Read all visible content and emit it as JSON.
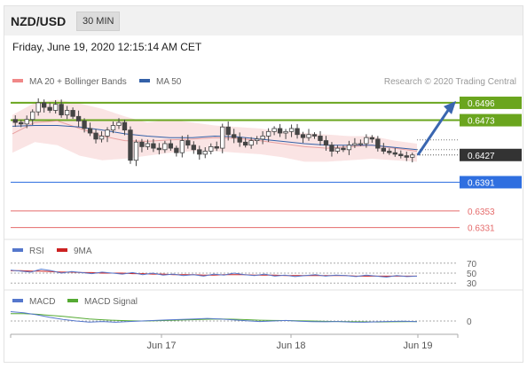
{
  "header": {
    "symbol": "NZD/USD",
    "timeframe": "30 MIN"
  },
  "datetime": "Friday, June 19, 2020 12:15:14 AM CET",
  "colors": {
    "green_level": "#6aa51e",
    "blue_level": "#2f6fe0",
    "red_level": "#e56b6b",
    "bollinger": "#f4c3c3",
    "ma20": "#e8a0a0",
    "ma50": "#3461a8",
    "rsi": "#5577cc",
    "rsi_ma": "#cc2222",
    "macd": "#5577cc",
    "macd_signal": "#55aa33",
    "candle": "#444444",
    "arrow": "#3a66b0",
    "price_box": "#333333"
  },
  "chart_data": [
    {
      "type": "candlestick",
      "legend": [
        {
          "label": "MA 20 + Bollinger Bands",
          "color": "#f08888"
        },
        {
          "label": "MA 50",
          "color": "#3461a8"
        }
      ],
      "copyright": "Research © 2020 Trading Central",
      "ylim": [
        0.632,
        0.651
      ],
      "current_price": 0.6427,
      "levels": [
        {
          "value": 0.6496,
          "label": "0.6496",
          "kind": "resistance"
        },
        {
          "value": 0.6473,
          "label": "0.6473",
          "kind": "resistance"
        },
        {
          "value": 0.6391,
          "label": "0.6391",
          "kind": "support"
        },
        {
          "value": 0.6353,
          "label": "0.6353",
          "kind": "support"
        },
        {
          "value": 0.6331,
          "label": "0.6331",
          "kind": "support"
        }
      ],
      "close_series": [
        0.647,
        0.6468,
        0.6474,
        0.6484,
        0.6496,
        0.649,
        0.6486,
        0.6494,
        0.648,
        0.6486,
        0.6478,
        0.6472,
        0.6462,
        0.6456,
        0.6448,
        0.6452,
        0.646,
        0.6466,
        0.647,
        0.646,
        0.642,
        0.6444,
        0.6438,
        0.6442,
        0.6436,
        0.6434,
        0.6442,
        0.6436,
        0.643,
        0.6446,
        0.644,
        0.6434,
        0.6428,
        0.6432,
        0.6438,
        0.6436,
        0.6464,
        0.6454,
        0.645,
        0.6444,
        0.644,
        0.6446,
        0.6448,
        0.6452,
        0.6458,
        0.6462,
        0.6456,
        0.6458,
        0.6462,
        0.6454,
        0.645,
        0.6454,
        0.6452,
        0.6446,
        0.644,
        0.6432,
        0.6436,
        0.6434,
        0.644,
        0.6442,
        0.6442,
        0.645,
        0.6448,
        0.6436,
        0.6432,
        0.643,
        0.6428,
        0.6426,
        0.6424,
        0.6427
      ],
      "bollinger_upper": [
        0.648,
        0.6496,
        0.65,
        0.6495,
        0.6488,
        0.6478,
        0.647,
        0.6474,
        0.647,
        0.6466,
        0.6464,
        0.6462,
        0.6458,
        0.6456,
        0.6454,
        0.6452,
        0.6452,
        0.6446,
        0.6442
      ],
      "bollinger_lower": [
        0.643,
        0.6444,
        0.644,
        0.6426,
        0.642,
        0.6422,
        0.6426,
        0.643,
        0.6432,
        0.6432,
        0.643,
        0.6428,
        0.6424,
        0.6418,
        0.6418,
        0.642,
        0.6422,
        0.642,
        0.6418
      ],
      "ma20": [
        0.6455,
        0.647,
        0.6472,
        0.6462,
        0.6452,
        0.6446,
        0.6445,
        0.6447,
        0.6448,
        0.645,
        0.6449,
        0.6446,
        0.6442,
        0.6438,
        0.6436,
        0.6438,
        0.644,
        0.6436,
        0.6432
      ],
      "ma50": [
        0.6465,
        0.6466,
        0.6466,
        0.6464,
        0.646,
        0.6455,
        0.6452,
        0.645,
        0.645,
        0.6452,
        0.6451,
        0.6448,
        0.6445,
        0.6442,
        0.644,
        0.644,
        0.644,
        0.6437,
        0.6434
      ],
      "projection": {
        "from": 0.6427,
        "to": 0.6496
      },
      "x_ticks": [
        "Jun 17",
        "Jun 18",
        "Jun 19"
      ]
    },
    {
      "type": "line",
      "legend": [
        {
          "label": "RSI",
          "color": "#5577cc"
        },
        {
          "label": "9MA",
          "color": "#cc2222"
        }
      ],
      "ylim": [
        25,
        75
      ],
      "y_ticks": [
        70,
        50,
        30
      ],
      "rsi": [
        56,
        54,
        52,
        58,
        55,
        50,
        53,
        51,
        49,
        52,
        50,
        48,
        51,
        47,
        50,
        46,
        48,
        45,
        47,
        44,
        48,
        46,
        50,
        47,
        45,
        48,
        44,
        46,
        43,
        45,
        47,
        44,
        46,
        45,
        43,
        46,
        44,
        42,
        45,
        43,
        44
      ],
      "rsi_ma": [
        55,
        55,
        54,
        54,
        53,
        52,
        52,
        51,
        51,
        50,
        50,
        50,
        49,
        49,
        48,
        48,
        47,
        47,
        47,
        46,
        46,
        47,
        47,
        47,
        46,
        46,
        46,
        45,
        45,
        45,
        45,
        45,
        45,
        45,
        44,
        44,
        44,
        44,
        44,
        44,
        44
      ]
    },
    {
      "type": "line",
      "legend": [
        {
          "label": "MACD",
          "color": "#5577cc"
        },
        {
          "label": "MACD Signal",
          "color": "#55aa33"
        }
      ],
      "ylim": [
        -1.2,
        1.2
      ],
      "y_ticks": [
        0
      ],
      "macd": [
        0.9,
        0.8,
        0.6,
        0.35,
        0.15,
        0.0,
        -0.1,
        -0.05,
        -0.12,
        -0.05,
        0.0,
        0.05,
        0.1,
        0.15,
        0.2,
        0.25,
        0.2,
        0.1,
        0.02,
        -0.05,
        0.0,
        0.05,
        -0.02,
        -0.06,
        -0.08,
        -0.05,
        -0.1,
        -0.12,
        -0.08,
        -0.04,
        -0.02,
        -0.06
      ],
      "macd_signal": [
        0.7,
        0.7,
        0.65,
        0.55,
        0.45,
        0.32,
        0.2,
        0.12,
        0.06,
        0.02,
        0.0,
        0.02,
        0.05,
        0.09,
        0.13,
        0.17,
        0.19,
        0.17,
        0.13,
        0.08,
        0.05,
        0.04,
        0.02,
        0.0,
        -0.03,
        -0.05,
        -0.06,
        -0.08,
        -0.09,
        -0.08,
        -0.06,
        -0.05
      ]
    }
  ]
}
